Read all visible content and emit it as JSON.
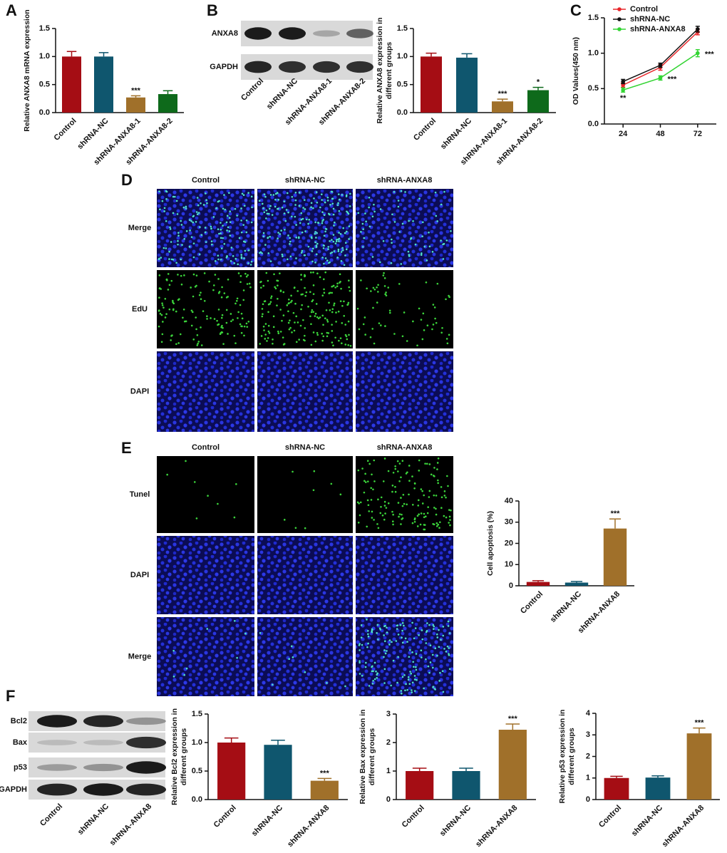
{
  "panel_labels": [
    "A",
    "B",
    "C",
    "D",
    "E",
    "F"
  ],
  "blots": [
    {
      "rows": [
        "ANXA8",
        "GAPDH"
      ],
      "lanes": [
        "Control",
        "shRNA-NC",
        "shRNA-ANXA8-1",
        "shRNA-ANXA8-2"
      ]
    },
    {
      "rows": [
        "Bcl2",
        "Bax",
        "p53",
        "GAPDH"
      ],
      "lanes": [
        "Control",
        "shRNA-NC",
        "shRNA-ANXA8"
      ]
    }
  ],
  "micrographs": [
    {
      "columns": [
        "Control",
        "shRNA-NC",
        "shRNA-ANXA8"
      ],
      "rows": [
        "Merge",
        "EdU",
        "DAPI"
      ]
    },
    {
      "columns": [
        "Control",
        "shRNA-NC",
        "shRNA-ANXA8"
      ],
      "rows": [
        "Tunel",
        "DAPI",
        "Merge"
      ]
    }
  ],
  "chart_data": [
    {
      "type": "bar",
      "ylabel": "Relative ANXA8 mRNA expression",
      "categories": [
        "Control",
        "shRNA-NC",
        "shRNA-ANXA8-1",
        "shRNA-ANXA8-2"
      ],
      "values": [
        1.0,
        1.0,
        0.27,
        0.33
      ],
      "errors": [
        0.09,
        0.07,
        0.03,
        0.06
      ],
      "colors": [
        "#a50d14",
        "#0f566e",
        "#a0702a",
        "#0e6a1b"
      ],
      "ylim": [
        0,
        1.5
      ],
      "yticks": [
        {
          "value": 0,
          "label": "0.0"
        },
        {
          "value": 0.5,
          "label": "0.5"
        },
        {
          "value": 1,
          "label": "1.0"
        },
        {
          "value": 1.5,
          "label": "1.5"
        }
      ],
      "annotations": [
        {
          "index": 2,
          "text": "***"
        }
      ]
    },
    {
      "type": "bar",
      "ylabel": [
        "Relative ANXA8 expression in",
        "different groups"
      ],
      "categories": [
        "Control",
        "shRNA-NC",
        "shRNA-ANXA8-1",
        "shRNA-ANXA8-2"
      ],
      "values": [
        1.0,
        0.98,
        0.2,
        0.4
      ],
      "errors": [
        0.06,
        0.07,
        0.04,
        0.05
      ],
      "colors": [
        "#a50d14",
        "#0f566e",
        "#a0702a",
        "#0e6a1b"
      ],
      "ylim": [
        0,
        1.5
      ],
      "yticks": [
        {
          "value": 0,
          "label": "0.0"
        },
        {
          "value": 0.5,
          "label": "0.5"
        },
        {
          "value": 1,
          "label": "1.0"
        },
        {
          "value": 1.5,
          "label": "1.5"
        }
      ],
      "annotations": [
        {
          "index": 2,
          "text": "***"
        },
        {
          "index": 3,
          "text": "*"
        }
      ]
    },
    {
      "type": "line",
      "ylabel": "OD Values(450 nm)",
      "x": [
        24,
        48,
        72
      ],
      "series": [
        {
          "name": "Control",
          "color": "#e8262a",
          "values": [
            0.55,
            0.8,
            1.3
          ],
          "errors": [
            0.03,
            0.04,
            0.04
          ]
        },
        {
          "name": "shRNA-NC",
          "color": "#111111",
          "values": [
            0.6,
            0.83,
            1.34
          ],
          "errors": [
            0.03,
            0.03,
            0.04
          ]
        },
        {
          "name": "shRNA-ANXA8",
          "color": "#33d433",
          "values": [
            0.48,
            0.65,
            1.0
          ],
          "errors": [
            0.03,
            0.03,
            0.05
          ]
        }
      ],
      "xlim": [
        12,
        84
      ],
      "xticks": [
        24,
        48,
        72
      ],
      "ylim": [
        0,
        1.5
      ],
      "yticks": [
        {
          "value": 0,
          "label": "0.0"
        },
        {
          "value": 0.5,
          "label": "0.5"
        },
        {
          "value": 1,
          "label": "1.0"
        },
        {
          "value": 1.5,
          "label": "1.5"
        }
      ],
      "annotations": [
        {
          "series": 2,
          "index": 0,
          "text": "**"
        },
        {
          "series": 2,
          "index": 1,
          "text": "***"
        },
        {
          "series": 2,
          "index": 2,
          "text": "***"
        }
      ]
    },
    {
      "type": "bar",
      "ylabel": "Cell apoptosis (%)",
      "categories": [
        "Control",
        "shRNA-NC",
        "shRNA-ANXA8"
      ],
      "values": [
        1.8,
        1.5,
        27
      ],
      "errors": [
        0.6,
        0.5,
        4.5
      ],
      "colors": [
        "#a50d14",
        "#0f566e",
        "#a0702a"
      ],
      "ylim": [
        0,
        40
      ],
      "yticks": [
        0,
        10,
        20,
        30,
        40
      ],
      "annotations": [
        {
          "index": 2,
          "text": "***"
        }
      ]
    },
    {
      "type": "bar",
      "ylabel": [
        "Relative Bcl2 expression in",
        "different groups"
      ],
      "categories": [
        "Control",
        "shRNA-NC",
        "shRNA-ANXA8"
      ],
      "values": [
        1.0,
        0.96,
        0.33
      ],
      "errors": [
        0.08,
        0.08,
        0.04
      ],
      "colors": [
        "#a50d14",
        "#0f566e",
        "#a0702a"
      ],
      "ylim": [
        0,
        1.5
      ],
      "yticks": [
        {
          "value": 0,
          "label": "0.0"
        },
        {
          "value": 0.5,
          "label": "0.5"
        },
        {
          "value": 1,
          "label": "1.0"
        },
        {
          "value": 1.5,
          "label": "1.5"
        }
      ],
      "annotations": [
        {
          "index": 2,
          "text": "***"
        }
      ]
    },
    {
      "type": "bar",
      "ylabel": [
        "Relative Bax expression in",
        "different groups"
      ],
      "categories": [
        "Control",
        "shRNA-NC",
        "shRNA-ANXA8"
      ],
      "values": [
        1.0,
        1.0,
        2.45
      ],
      "errors": [
        0.1,
        0.1,
        0.2
      ],
      "colors": [
        "#a50d14",
        "#0f566e",
        "#a0702a"
      ],
      "ylim": [
        0,
        3
      ],
      "yticks": [
        0,
        1,
        2,
        3
      ],
      "annotations": [
        {
          "index": 2,
          "text": "***"
        }
      ]
    },
    {
      "type": "bar",
      "ylabel": [
        "Relative p53 expression in",
        "different groups"
      ],
      "categories": [
        "Control",
        "shRNA-NC",
        "shRNA-ANXA8"
      ],
      "values": [
        1.0,
        1.02,
        3.07
      ],
      "errors": [
        0.08,
        0.08,
        0.25
      ],
      "colors": [
        "#a50d14",
        "#0f566e",
        "#a0702a"
      ],
      "ylim": [
        0,
        4
      ],
      "yticks": [
        0,
        1,
        2,
        3,
        4
      ],
      "annotations": [
        {
          "index": 2,
          "text": "***"
        }
      ]
    }
  ]
}
